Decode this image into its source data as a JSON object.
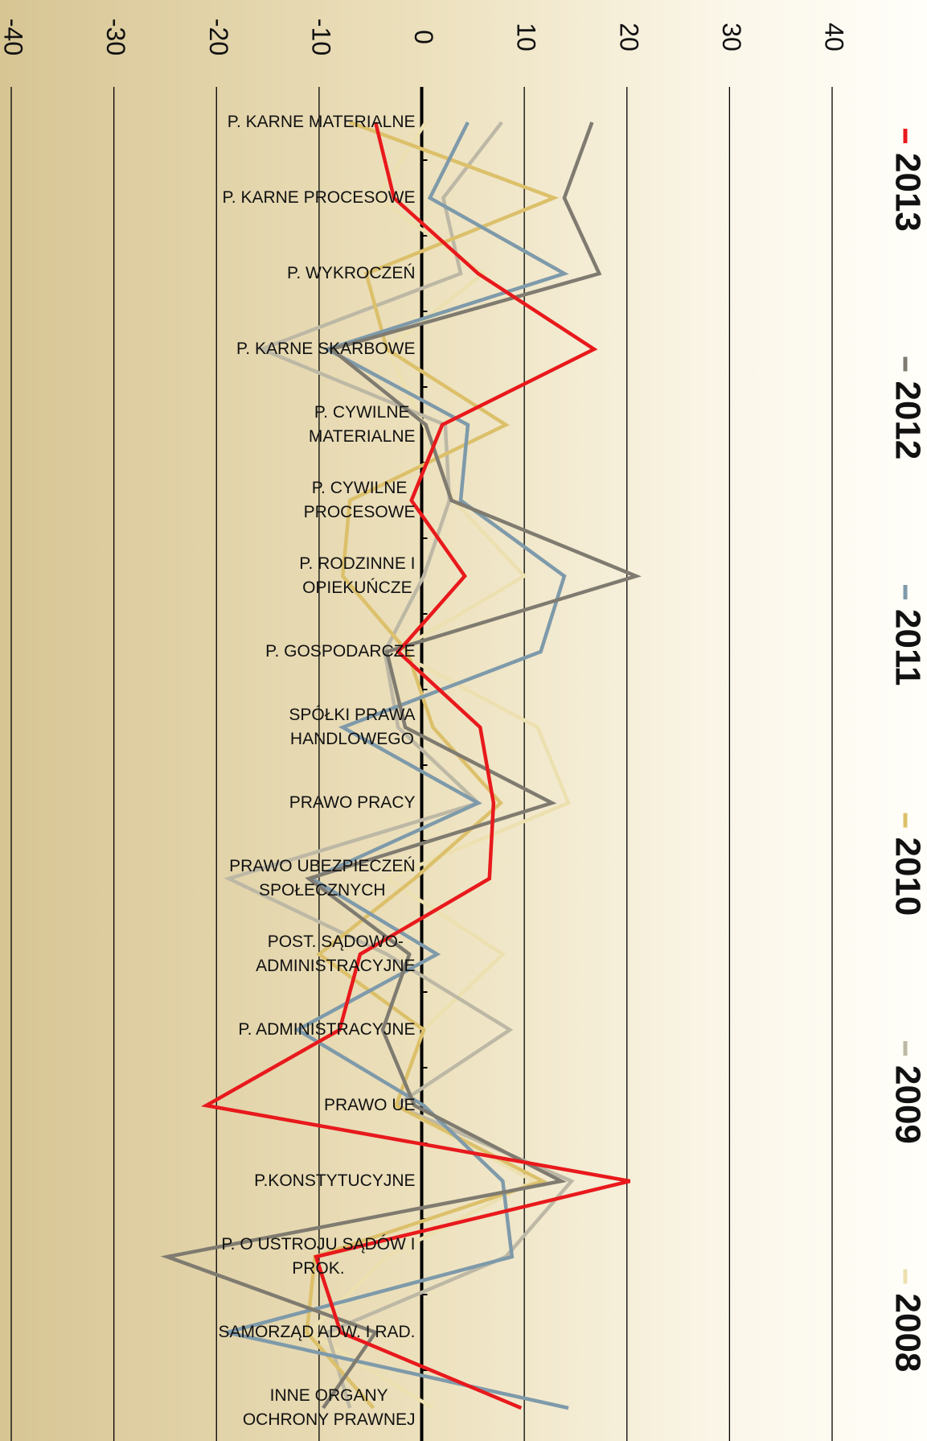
{
  "chart_data": {
    "type": "line",
    "orientation": "horizontal",
    "categories": [
      "P. KARNE MATERIALNE",
      "P. KARNE PROCESOWE",
      "P. WYKROCZEŃ",
      "P. KARNE SKARBOWE",
      "P. CYWILNE\nMATERIALNE",
      "P. CYWILNE\nPROCESOWE",
      "P. RODZINNE I\nOPIEKUŃCZE",
      "P. GOSPODARCZE",
      "SPÓŁKI PRAWA\nHANDLOWEGO",
      "PRAWO PRACY",
      "PRAWO UBEZPIECZEŃ\nSPOŁECZNYCH",
      "POST. SĄDOWO-\nADMINISTRACYJNE",
      "P. ADMINISTRACYJNE",
      "PRAWO UE",
      "P.KONSTYTUCYJNE",
      "P. O USTROJU SĄDÓW I\nPROK.",
      "SAMORZĄD ADW. I RAD.",
      "INNE ORGANY\nOCHRONY PRAWNEJ"
    ],
    "series": [
      {
        "name": "2013",
        "color": "#e8191c",
        "values": [
          -4.5,
          -2.7,
          5.5,
          16.8,
          2,
          -1,
          4.2,
          -2.3,
          5.7,
          7,
          6.6,
          -6,
          -8,
          -21,
          20.3,
          -10.3,
          -7.9,
          9.7
        ]
      },
      {
        "name": "2012",
        "color": "#7f7b70",
        "values": [
          16.6,
          13.9,
          17.3,
          -8.8,
          0.4,
          2.9,
          20.9,
          -3.4,
          -1.6,
          12.7,
          -11,
          -1.2,
          -3.8,
          -0.7,
          13.6,
          -24.8,
          -4.5,
          -9.6
        ]
      },
      {
        "name": "2011",
        "color": "#7e9aaa",
        "values": [
          4.5,
          0.8,
          13.9,
          -9.2,
          4.5,
          3.8,
          13.9,
          11.6,
          -7.7,
          5.5,
          -10.7,
          1.5,
          -12.1,
          0.2,
          7.9,
          8.8,
          -19,
          14.3
        ]
      },
      {
        "name": "2010",
        "color": "#dcc06a",
        "values": [
          -7,
          12.9,
          -5.4,
          -3.4,
          8.2,
          -7,
          -7.7,
          -1.4,
          1.1,
          7.7,
          -0.7,
          -10,
          0.2,
          -2.5,
          11.8,
          -10.4,
          -11.2,
          -4.7
        ]
      },
      {
        "name": "2009",
        "color": "#bdb8a5",
        "values": [
          7.8,
          2.1,
          3.8,
          -15.6,
          2.3,
          2.7,
          0.2,
          -3.6,
          -2.3,
          5.5,
          -18.8,
          -3.4,
          8.6,
          -2.5,
          14.6,
          8.2,
          -9.2,
          -7
        ]
      },
      {
        "name": "2008",
        "color": "#ede0b0",
        "values": [
          0.4,
          -4.3,
          6,
          -3.4,
          0.2,
          3.1,
          10,
          -2.5,
          11.3,
          14.3,
          -3.4,
          7.9,
          0.2,
          -2.5,
          10.9,
          -3.4,
          -11,
          1.1
        ]
      }
    ],
    "xlim": [
      -40,
      40
    ],
    "xticks": [
      -40,
      -30,
      -20,
      -10,
      0,
      10,
      20,
      30,
      40
    ],
    "grid": true,
    "legend": "right"
  }
}
